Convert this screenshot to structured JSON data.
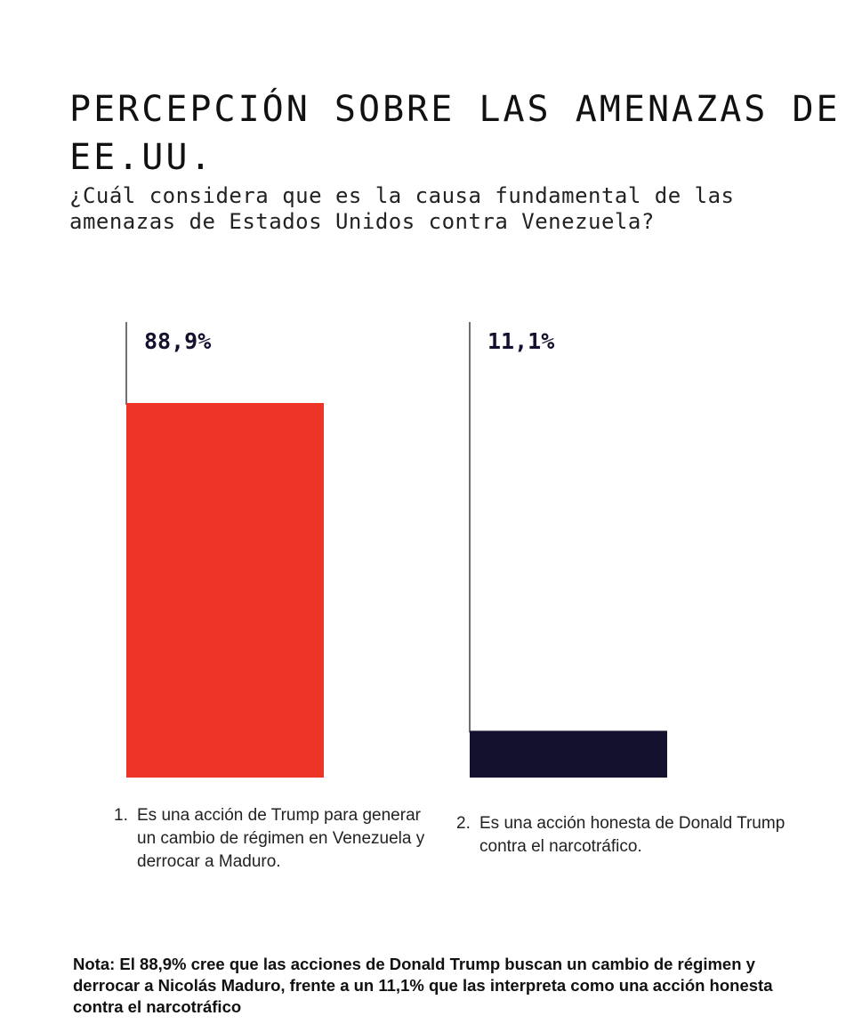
{
  "chart_data": {
    "type": "bar",
    "title": "PERCEPCIÓN SOBRE LAS AMENAZAS DE EE.UU.",
    "subtitle": "¿Cuál considera que es la causa fundamental de las amenazas de Estados Unidos contra Venezuela?",
    "categories": [
      {
        "number": "1.",
        "text": "Es una acción de Trump para generar un cambio de régimen en Venezuela y derrocar a Maduro."
      },
      {
        "number": "2.",
        "text": "Es una acción honesta de Donald Trump contra el narcotráfico."
      }
    ],
    "values": [
      88.9,
      11.1
    ],
    "value_labels": [
      "88,9%",
      "11,1%"
    ],
    "colors": [
      "#ee3426",
      "#14112e"
    ],
    "ylim": [
      0,
      100
    ],
    "grid": false,
    "legend": "none"
  },
  "note": "Nota: El 88,9% cree que las acciones de Donald Trump buscan un cambio de régimen y derrocar a Nicolás Maduro, frente a un 11,1% que las interpreta como una acción honesta contra el narcotráfico"
}
